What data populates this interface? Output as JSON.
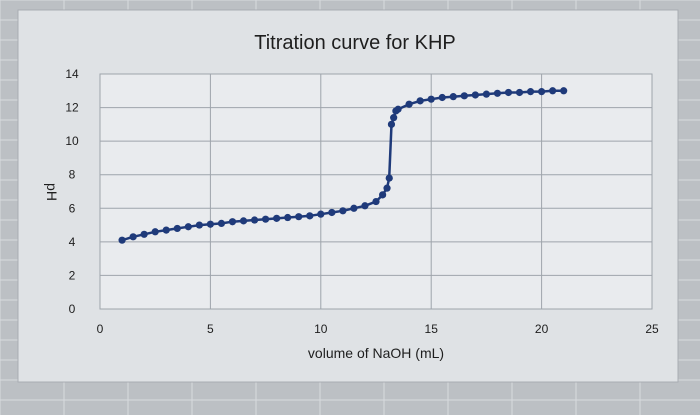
{
  "chart_data": {
    "type": "line",
    "title": "Titration curve for KHP",
    "xlabel": "volume of NaOH (mL)",
    "ylabel": "pH",
    "xlim": [
      0,
      25
    ],
    "ylim": [
      0,
      14
    ],
    "x_ticks": [
      0,
      5,
      10,
      15,
      20,
      25
    ],
    "y_ticks": [
      0,
      2,
      4,
      6,
      8,
      10,
      12,
      14
    ],
    "grid": true,
    "legend": "none",
    "series": [
      {
        "color": "#1f3a7a",
        "marker": "circle",
        "x": [
          1.0,
          1.5,
          2.0,
          2.5,
          3.0,
          3.5,
          4.0,
          4.5,
          5.0,
          5.5,
          6.0,
          6.5,
          7.0,
          7.5,
          8.0,
          8.5,
          9.0,
          9.5,
          10.0,
          10.5,
          11.0,
          11.5,
          12.0,
          12.5,
          12.8,
          13.0,
          13.1,
          13.2,
          13.3,
          13.4,
          13.5,
          14.0,
          14.5,
          15.0,
          15.5,
          16.0,
          16.5,
          17.0,
          17.5,
          18.0,
          18.5,
          19.0,
          19.5,
          20.0,
          20.5,
          21.0
        ],
        "y": [
          4.1,
          4.3,
          4.45,
          4.6,
          4.7,
          4.8,
          4.9,
          5.0,
          5.05,
          5.1,
          5.2,
          5.25,
          5.3,
          5.35,
          5.4,
          5.45,
          5.5,
          5.55,
          5.65,
          5.75,
          5.85,
          6.0,
          6.15,
          6.4,
          6.8,
          7.2,
          7.8,
          11.0,
          11.4,
          11.8,
          11.9,
          12.2,
          12.4,
          12.5,
          12.6,
          12.65,
          12.7,
          12.75,
          12.8,
          12.85,
          12.9,
          12.9,
          12.95,
          12.95,
          13.0,
          13.0
        ]
      }
    ]
  },
  "colors": {
    "line": "#1f3a7a",
    "plot_background": "#e9ebee",
    "gridline": "#9ea4ab",
    "sheet_background": "#bcc0c4",
    "text": "#1e1e1e"
  }
}
